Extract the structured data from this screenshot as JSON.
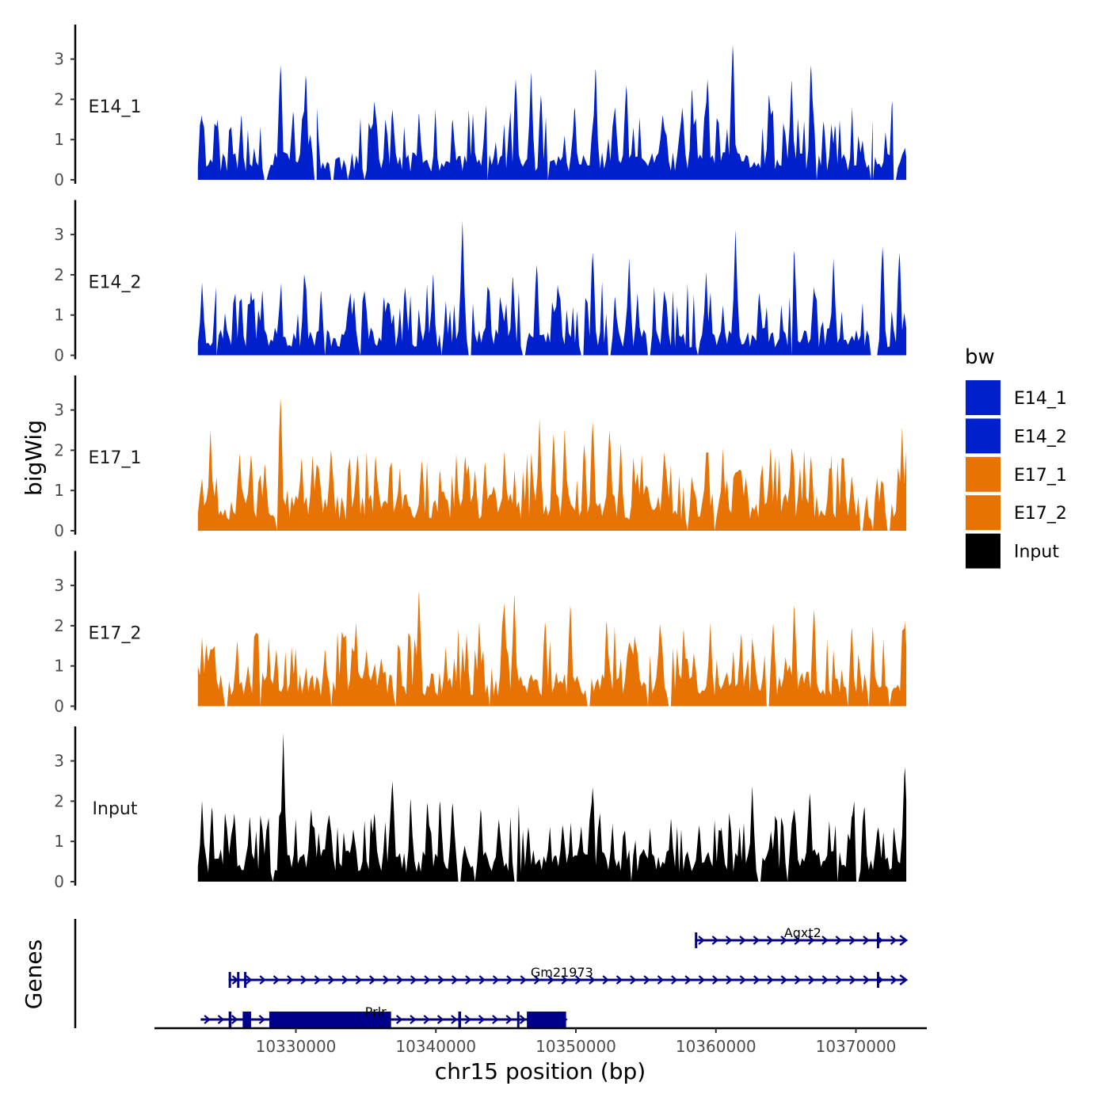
{
  "chart_data": {
    "type": "area",
    "y_axis_title": "bigWig",
    "x_axis_title": "chr15 position (bp)",
    "genes_axis_title": "Genes",
    "x_range": [
      10323000,
      10373600
    ],
    "x_ticks": [
      10330000,
      10340000,
      10350000,
      10360000,
      10370000
    ],
    "x_tick_labels": [
      "10330000",
      "10340000",
      "10350000",
      "10360000",
      "10370000"
    ],
    "y_range": [
      0,
      3.85
    ],
    "y_ticks": [
      0,
      1,
      2,
      3
    ],
    "y_tick_labels": [
      "0",
      "1",
      "2",
      "3"
    ],
    "legend": {
      "title": "bw",
      "items": [
        {
          "label": "E14_1",
          "color": "#0020CC"
        },
        {
          "label": "E14_2",
          "color": "#0020CC"
        },
        {
          "label": "E17_1",
          "color": "#E87305"
        },
        {
          "label": "E17_2",
          "color": "#E87305"
        },
        {
          "label": "Input",
          "color": "#000000"
        }
      ]
    },
    "tracks": [
      {
        "name": "E14_1",
        "color": "#0020CC",
        "base": 0.55,
        "seed": 11,
        "peaks": [
          [
            10323300,
            1.5
          ],
          [
            10324400,
            1.5
          ],
          [
            10326100,
            1.6
          ],
          [
            10328900,
            2.85
          ],
          [
            10329800,
            1.7
          ],
          [
            10330700,
            2.6
          ],
          [
            10331500,
            1.8
          ],
          [
            10335600,
            1.95
          ],
          [
            10336900,
            1.75
          ],
          [
            10338800,
            1.65
          ],
          [
            10341200,
            1.5
          ],
          [
            10343600,
            1.85
          ],
          [
            10345700,
            2.5
          ],
          [
            10346800,
            2.65
          ],
          [
            10347500,
            2.1
          ],
          [
            10349900,
            1.8
          ],
          [
            10351400,
            2.75
          ],
          [
            10352800,
            1.8
          ],
          [
            10353600,
            2.35
          ],
          [
            10356200,
            1.6
          ],
          [
            10357600,
            1.8
          ],
          [
            10358300,
            2.25
          ],
          [
            10359400,
            2.5
          ],
          [
            10361200,
            3.35
          ],
          [
            10363800,
            2.1
          ],
          [
            10365400,
            2.45
          ],
          [
            10366800,
            2.85
          ],
          [
            10367700,
            1.45
          ],
          [
            10368500,
            1.35
          ],
          [
            10371200,
            1.5
          ],
          [
            10372600,
            1.95
          ],
          [
            10373500,
            0.8
          ]
        ],
        "gaps": [
          [
            10327700,
            10328000
          ],
          [
            10331300,
            10331500
          ],
          [
            10332500,
            10332700
          ],
          [
            10333600,
            10333800
          ],
          [
            10334800,
            10335000
          ],
          [
            10343600,
            10343800
          ],
          [
            10347900,
            10348100
          ],
          [
            10367100,
            10367300
          ],
          [
            10371000,
            10371300
          ],
          [
            10372700,
            10372900
          ]
        ]
      },
      {
        "name": "E14_2",
        "color": "#0020CC",
        "base": 0.55,
        "seed": 23,
        "peaks": [
          [
            10323300,
            1.8
          ],
          [
            10324300,
            1.7
          ],
          [
            10326800,
            1.6
          ],
          [
            10327600,
            1.6
          ],
          [
            10330600,
            2.0
          ],
          [
            10331800,
            1.6
          ],
          [
            10333900,
            1.55
          ],
          [
            10334900,
            1.6
          ],
          [
            10336300,
            1.45
          ],
          [
            10337800,
            1.7
          ],
          [
            10339800,
            2.0
          ],
          [
            10341900,
            3.35
          ],
          [
            10343700,
            1.7
          ],
          [
            10345500,
            1.95
          ],
          [
            10347200,
            2.25
          ],
          [
            10348700,
            1.75
          ],
          [
            10351200,
            2.55
          ],
          [
            10352800,
            1.45
          ],
          [
            10353800,
            2.4
          ],
          [
            10354400,
            1.55
          ],
          [
            10356300,
            1.6
          ],
          [
            10359300,
            2.05
          ],
          [
            10361400,
            3.1
          ],
          [
            10363100,
            1.55
          ],
          [
            10365600,
            2.6
          ],
          [
            10367000,
            1.7
          ],
          [
            10368400,
            2.4
          ],
          [
            10371900,
            2.7
          ],
          [
            10373100,
            2.55
          ]
        ],
        "gaps": [
          [
            10324200,
            10324400
          ],
          [
            10332000,
            10332200
          ],
          [
            10334500,
            10334700
          ],
          [
            10340300,
            10340500
          ],
          [
            10342300,
            10342600
          ],
          [
            10346200,
            10346400
          ],
          [
            10350300,
            10350600
          ],
          [
            10352300,
            10352500
          ],
          [
            10355100,
            10355300
          ],
          [
            10358600,
            10358800
          ],
          [
            10365300,
            10365500
          ],
          [
            10371000,
            10371600
          ]
        ]
      },
      {
        "name": "E17_1",
        "color": "#E87305",
        "base": 0.75,
        "seed": 37,
        "peaks": [
          [
            10323300,
            1.3
          ],
          [
            10323900,
            2.5
          ],
          [
            10326000,
            1.9
          ],
          [
            10326800,
            1.9
          ],
          [
            10327800,
            1.65
          ],
          [
            10328900,
            3.3
          ],
          [
            10330400,
            1.8
          ],
          [
            10331200,
            1.85
          ],
          [
            10332500,
            2.0
          ],
          [
            10334400,
            1.9
          ],
          [
            10335700,
            1.85
          ],
          [
            10336700,
            1.55
          ],
          [
            10339000,
            1.75
          ],
          [
            10340300,
            1.5
          ],
          [
            10342100,
            1.85
          ],
          [
            10343500,
            1.7
          ],
          [
            10344900,
            1.95
          ],
          [
            10347400,
            2.75
          ],
          [
            10348400,
            2.4
          ],
          [
            10349200,
            2.5
          ],
          [
            10350600,
            2.15
          ],
          [
            10351200,
            2.7
          ],
          [
            10352400,
            2.5
          ],
          [
            10353200,
            2.15
          ],
          [
            10354700,
            1.9
          ],
          [
            10356300,
            1.95
          ],
          [
            10359300,
            1.95
          ],
          [
            10360500,
            2.05
          ],
          [
            10361800,
            1.5
          ],
          [
            10363900,
            2.05
          ],
          [
            10365400,
            2.05
          ],
          [
            10366800,
            1.85
          ],
          [
            10368200,
            1.55
          ],
          [
            10369700,
            1.35
          ],
          [
            10373300,
            2.55
          ],
          [
            10373600,
            2.0
          ]
        ],
        "gaps": [
          [
            10328600,
            10328800
          ],
          [
            10357900,
            10358100
          ],
          [
            10359800,
            10360000
          ],
          [
            10370300,
            10370600
          ],
          [
            10371100,
            10371300
          ],
          [
            10372200,
            10372500
          ]
        ]
      },
      {
        "name": "E17_2",
        "color": "#E87305",
        "base": 0.7,
        "seed": 53,
        "peaks": [
          [
            10323300,
            1.7
          ],
          [
            10325800,
            1.6
          ],
          [
            10326600,
            1.0
          ],
          [
            10328600,
            1.4
          ],
          [
            10332100,
            1.4
          ],
          [
            10333300,
            1.85
          ],
          [
            10334300,
            2.05
          ],
          [
            10336100,
            1.2
          ],
          [
            10337400,
            1.45
          ],
          [
            10338800,
            2.85
          ],
          [
            10340700,
            1.45
          ],
          [
            10342200,
            1.8
          ],
          [
            10343100,
            2.1
          ],
          [
            10344900,
            2.55
          ],
          [
            10345600,
            2.75
          ],
          [
            10347800,
            2.1
          ],
          [
            10349600,
            2.5
          ],
          [
            10352200,
            2.1
          ],
          [
            10354200,
            1.75
          ],
          [
            10356000,
            2.05
          ],
          [
            10357700,
            1.9
          ],
          [
            10359600,
            2.05
          ],
          [
            10361800,
            1.8
          ],
          [
            10364100,
            2.05
          ],
          [
            10365600,
            2.5
          ],
          [
            10367000,
            2.4
          ],
          [
            10369700,
            1.95
          ],
          [
            10371200,
            1.95
          ],
          [
            10373500,
            2.1
          ]
        ],
        "gaps": [
          [
            10324900,
            10325100
          ],
          [
            10327400,
            10327600
          ],
          [
            10332400,
            10332600
          ],
          [
            10337000,
            10337200
          ],
          [
            10343700,
            10343900
          ],
          [
            10350800,
            10351000
          ],
          [
            10355000,
            10355200
          ],
          [
            10356600,
            10356800
          ],
          [
            10363600,
            10363800
          ],
          [
            10369300,
            10369500
          ],
          [
            10370800,
            10371000
          ],
          [
            10372300,
            10372500
          ]
        ]
      },
      {
        "name": "Input",
        "color": "#000000",
        "base": 0.65,
        "seed": 71,
        "peaks": [
          [
            10323300,
            2.0
          ],
          [
            10324000,
            1.85
          ],
          [
            10325600,
            1.7
          ],
          [
            10326700,
            1.6
          ],
          [
            10327900,
            1.3
          ],
          [
            10329100,
            3.7
          ],
          [
            10331100,
            1.8
          ],
          [
            10332500,
            1.3
          ],
          [
            10334100,
            1.3
          ],
          [
            10335600,
            1.7
          ],
          [
            10336900,
            2.5
          ],
          [
            10338200,
            2.05
          ],
          [
            10339400,
            1.95
          ],
          [
            10340300,
            2.0
          ],
          [
            10341200,
            1.95
          ],
          [
            10343200,
            1.8
          ],
          [
            10344500,
            1.55
          ],
          [
            10346600,
            1.35
          ],
          [
            10349100,
            1.3
          ],
          [
            10351200,
            2.35
          ],
          [
            10352600,
            1.35
          ],
          [
            10355300,
            1.3
          ],
          [
            10356800,
            1.55
          ],
          [
            10358800,
            1.4
          ],
          [
            10360400,
            1.35
          ],
          [
            10362600,
            2.35
          ],
          [
            10364200,
            1.35
          ],
          [
            10365600,
            1.8
          ],
          [
            10366700,
            2.2
          ],
          [
            10368100,
            1.5
          ],
          [
            10369700,
            1.65
          ],
          [
            10370600,
            1.85
          ],
          [
            10371600,
            1.35
          ],
          [
            10373500,
            2.85
          ]
        ],
        "gaps": [
          [
            10328300,
            10328500
          ],
          [
            10341600,
            10341800
          ],
          [
            10342700,
            10342900
          ],
          [
            10345600,
            10345800
          ],
          [
            10353900,
            10354100
          ],
          [
            10363000,
            10363200
          ],
          [
            10365000,
            10365200
          ],
          [
            10368600,
            10368800
          ],
          [
            10370000,
            10370200
          ]
        ]
      }
    ],
    "genes": [
      {
        "name": "Agxt2",
        "row": 0,
        "strand": "+",
        "start": 10358500,
        "end": 10373600,
        "label_pos": 10366200,
        "exons": [
          [
            10358500,
            10358600
          ],
          [
            10371500,
            10371600
          ]
        ]
      },
      {
        "name": "Gm21973",
        "row": 1,
        "strand": "+",
        "start": 10325200,
        "end": 10373600,
        "label_pos": 10349000,
        "exons": [
          [
            10325200,
            10325300
          ],
          [
            10325800,
            10325900
          ],
          [
            10326300,
            10326400
          ],
          [
            10371500,
            10371600
          ]
        ]
      },
      {
        "name": "Prlr",
        "row": 2,
        "strand": "+",
        "start": 10323200,
        "end": 10349300,
        "label_pos": 10335700,
        "exons": [
          [
            10325200,
            10325400
          ],
          [
            10326200,
            10326800
          ],
          [
            10328100,
            10336800
          ],
          [
            10341600,
            10341800
          ],
          [
            10345800,
            10345950
          ],
          [
            10346500,
            10349300
          ]
        ]
      }
    ]
  }
}
